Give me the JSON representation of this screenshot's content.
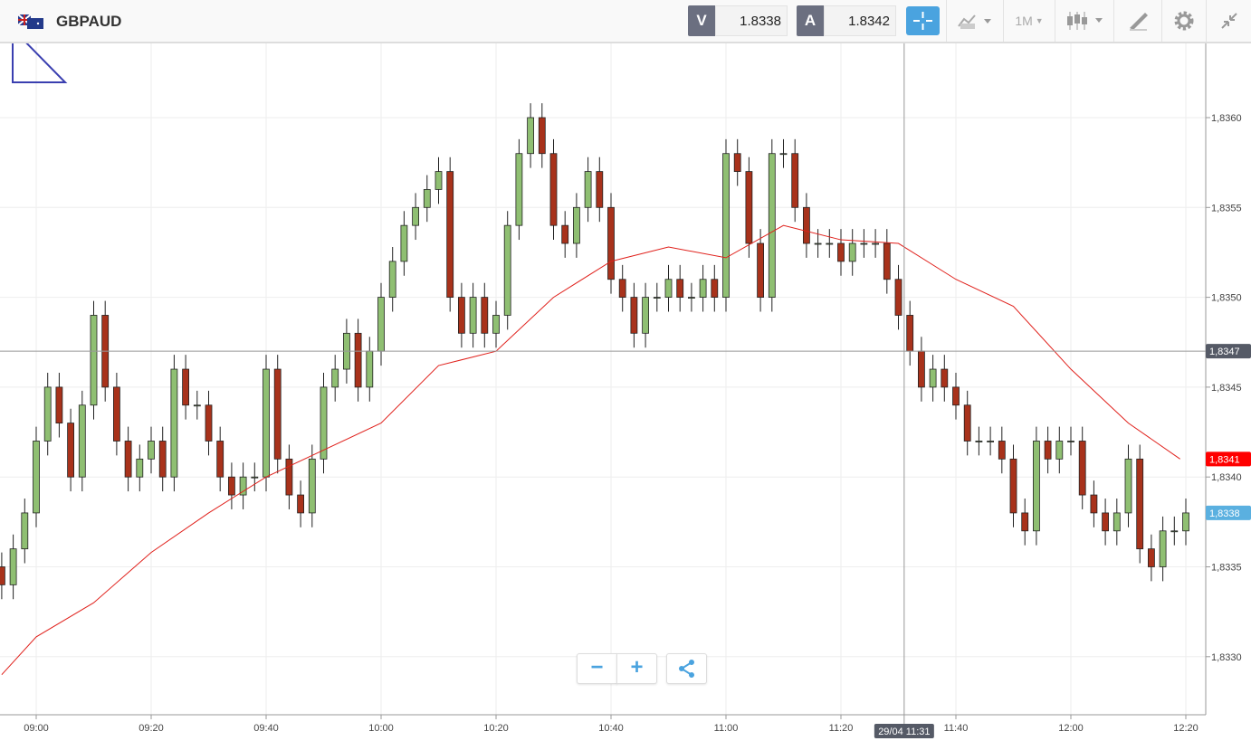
{
  "header": {
    "symbol": "GBPAUD",
    "flag_icon": "gb-au-flag",
    "sell_label": "V",
    "sell_price": "1.8338",
    "buy_label": "A",
    "buy_price": "1.8342",
    "timeframe": "1M",
    "tools": [
      "crosshair-icon",
      "indicators-icon",
      "timeframe-dropdown",
      "candle-type-icon",
      "draw-icon",
      "gear-icon",
      "collapse-icon"
    ]
  },
  "colors": {
    "up": "#8fbf72",
    "down": "#a8321b",
    "ma": "#e0201b",
    "accent": "#4aa3df",
    "crosshair_label": "#555a66",
    "last_price": "#ff0000",
    "bid": "#5ab0e0"
  },
  "zoom": {
    "minus": "−",
    "plus": "+",
    "share_icon": "share-icon"
  },
  "chart_data": {
    "type": "candlestick",
    "interval_minutes": 2,
    "start_time": "08:54",
    "closes": [
      1.8334,
      1.8336,
      1.8338,
      1.8342,
      1.8345,
      1.8343,
      1.834,
      1.8344,
      1.8349,
      1.8345,
      1.8342,
      1.834,
      1.8341,
      1.8342,
      1.834,
      1.8346,
      1.8344,
      1.8344,
      1.8342,
      1.834,
      1.8339,
      1.834,
      1.834,
      1.8346,
      1.8341,
      1.8339,
      1.8338,
      1.8341,
      1.8345,
      1.8346,
      1.8348,
      1.8345,
      1.8347,
      1.835,
      1.8352,
      1.8354,
      1.8355,
      1.8356,
      1.8357,
      1.835,
      1.8348,
      1.835,
      1.8348,
      1.8349,
      1.8354,
      1.8358,
      1.836,
      1.8358,
      1.8354,
      1.8353,
      1.8355,
      1.8357,
      1.8355,
      1.8351,
      1.835,
      1.8348,
      1.835,
      1.835,
      1.8351,
      1.835,
      1.835,
      1.8351,
      1.835,
      1.8358,
      1.8357,
      1.8353,
      1.835,
      1.8358,
      1.8358,
      1.8355,
      1.8353,
      1.8353,
      1.8353,
      1.8352,
      1.8353,
      1.8353,
      1.8353,
      1.8351,
      1.8349,
      1.8347,
      1.8345,
      1.8346,
      1.8345,
      1.8344,
      1.8342,
      1.8342,
      1.8342,
      1.8341,
      1.8338,
      1.8337,
      1.8342,
      1.8341,
      1.8342,
      1.8342,
      1.8339,
      1.8338,
      1.8337,
      1.8338,
      1.8341,
      1.8336,
      1.8335,
      1.8337,
      1.8337,
      1.8338
    ],
    "moving_average": {
      "times": [
        "08:54",
        "09:00",
        "09:10",
        "09:20",
        "09:30",
        "09:40",
        "09:50",
        "10:00",
        "10:10",
        "10:20",
        "10:30",
        "10:40",
        "10:50",
        "11:00",
        "11:10",
        "11:20",
        "11:30",
        "11:40",
        "11:50",
        "12:00",
        "12:10",
        "12:19"
      ],
      "values": [
        1.8329,
        1.83311,
        1.8333,
        1.83358,
        1.8338,
        1.834,
        1.83415,
        1.8343,
        1.83462,
        1.8347,
        1.835,
        1.8352,
        1.83528,
        1.83522,
        1.8354,
        1.83532,
        1.8353,
        1.8351,
        1.83495,
        1.8346,
        1.8343,
        1.8341
      ]
    },
    "y_ticks": [
      "1,8360",
      "1,8355",
      "1,8350",
      "1,8345",
      "1,8340",
      "1,8335",
      "1,8330"
    ],
    "y_tick_values": [
      1.836,
      1.8355,
      1.835,
      1.8345,
      1.834,
      1.8335,
      1.833
    ],
    "x_ticks": [
      "09:00",
      "09:20",
      "09:40",
      "10:00",
      "10:20",
      "10:40",
      "11:00",
      "11:20",
      "11:40",
      "12:00",
      "12:20"
    ],
    "crosshair": {
      "price": "1,8347",
      "price_value": 1.8347,
      "time": "29/04 11:31"
    },
    "last_price": {
      "label": "1,8341",
      "value": 1.8341
    },
    "bid_price": {
      "label": "1,8338",
      "value": 1.8338
    },
    "ylim": [
      1.83275,
      1.83635
    ]
  }
}
